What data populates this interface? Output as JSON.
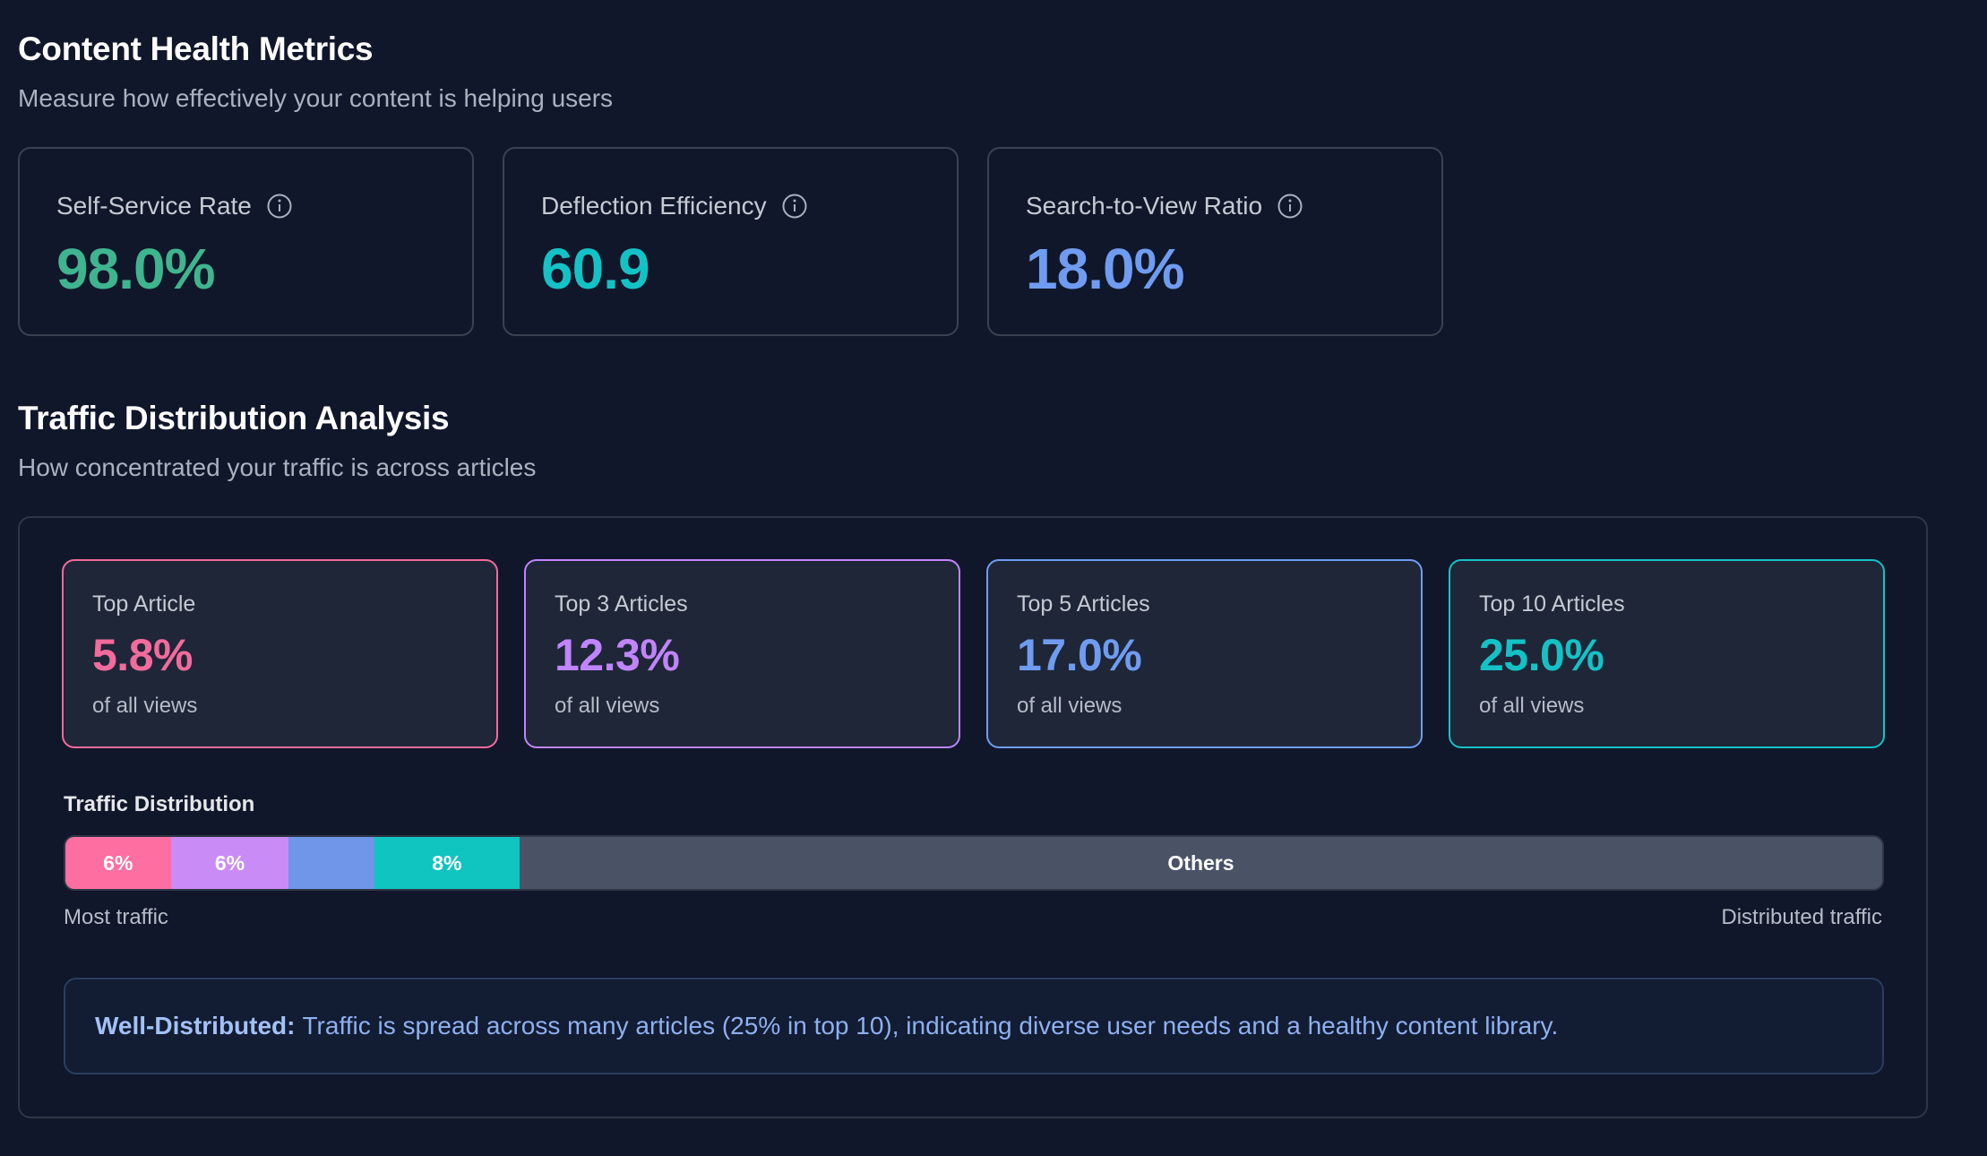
{
  "health": {
    "title": "Content Health Metrics",
    "subtitle": "Measure how effectively your content is helping users",
    "metrics": [
      {
        "label": "Self-Service Rate",
        "value": "98.0%",
        "color": "#3fb58f"
      },
      {
        "label": "Deflection Efficiency",
        "value": "60.9",
        "color": "#14c2c6"
      },
      {
        "label": "Search-to-View Ratio",
        "value": "18.0%",
        "color": "#6f9cf0"
      }
    ]
  },
  "traffic": {
    "title": "Traffic Distribution Analysis",
    "subtitle": "How concentrated your traffic is across articles",
    "tops": [
      {
        "label": "Top Article",
        "value": "5.8%",
        "sub": "of all views",
        "color": "#f26b9c"
      },
      {
        "label": "Top 3 Articles",
        "value": "12.3%",
        "sub": "of all views",
        "color": "#c084fc"
      },
      {
        "label": "Top 5 Articles",
        "value": "17.0%",
        "sub": "of all views",
        "color": "#6f9cf0"
      },
      {
        "label": "Top 10 Articles",
        "value": "25.0%",
        "sub": "of all views",
        "color": "#14c2c6"
      }
    ],
    "distribution_label": "Traffic Distribution",
    "segments": [
      {
        "label": "6%",
        "share": 5.8,
        "color": "#ff6ea0"
      },
      {
        "label": "6%",
        "share": 6.5,
        "color": "#c98cf7"
      },
      {
        "label": "",
        "share": 4.7,
        "color": "#6f96e8"
      },
      {
        "label": "8%",
        "share": 8.0,
        "color": "#10c4c0"
      }
    ],
    "others_label": "Others",
    "legend_left": "Most traffic",
    "legend_right": "Distributed traffic",
    "callout_bold": "Well-Distributed:",
    "callout_text": "Traffic is spread across many articles (25% in top 10), indicating diverse user needs and a healthy content library."
  }
}
